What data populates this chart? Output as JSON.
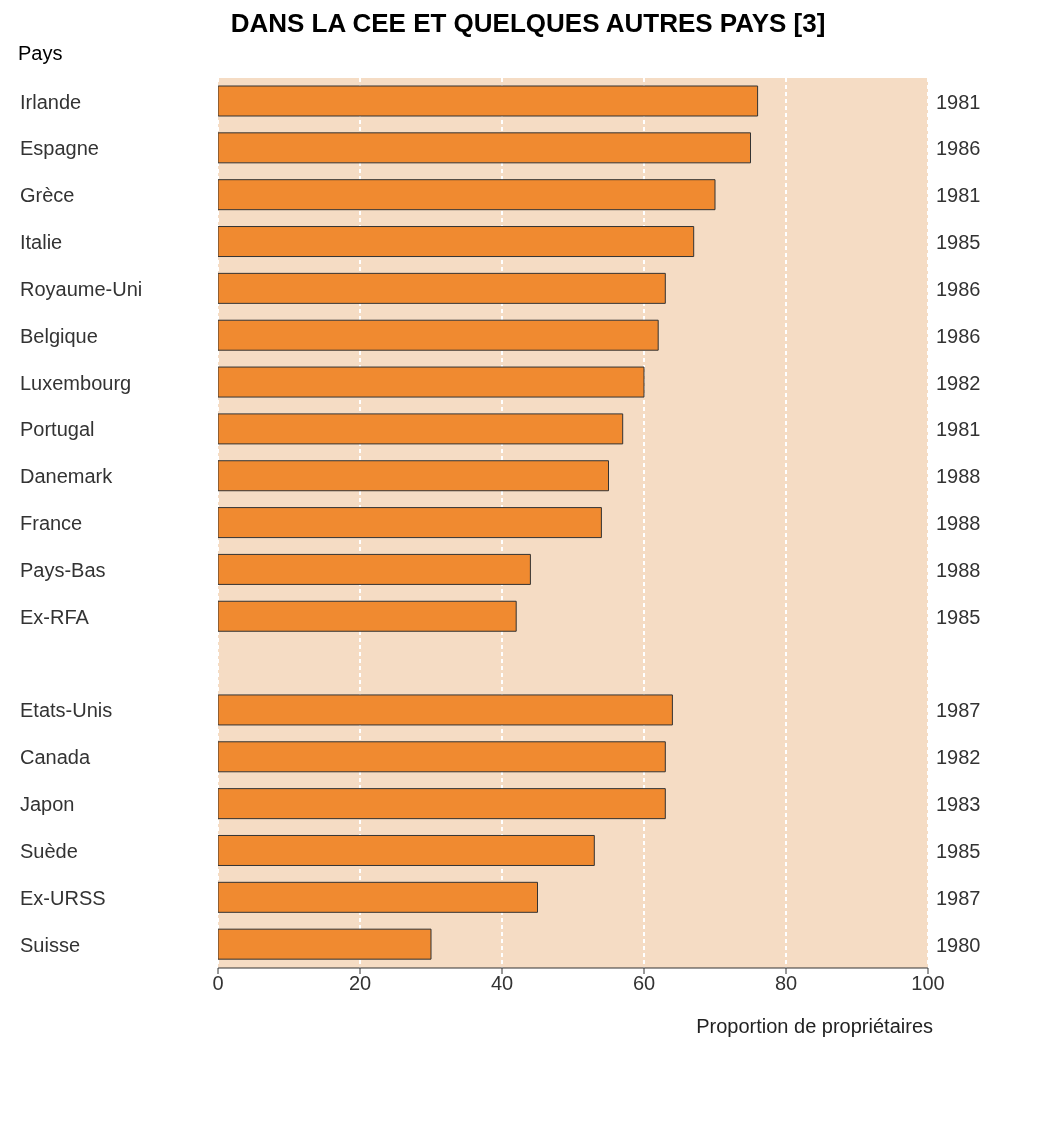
{
  "chart_data": {
    "type": "bar",
    "orientation": "horizontal",
    "title": "DANS LA CEE ET QUELQUES AUTRES PAYS [3]",
    "ylabel": "Pays",
    "xlabel": "Proportion de propriétaires",
    "categories": [
      "Irlande",
      "Espagne",
      "Grèce",
      "Italie",
      "Royaume-Uni",
      "Belgique",
      "Luxembourg",
      "Portugal",
      "Danemark",
      "France",
      "Pays-Bas",
      "Ex-RFA",
      null,
      "Etats-Unis",
      "Canada",
      "Japon",
      "Suède",
      "Ex-URSS",
      "Suisse"
    ],
    "values": [
      76,
      75,
      70,
      67,
      63,
      62,
      60,
      57,
      55,
      54,
      44,
      42,
      null,
      64,
      63,
      63,
      53,
      45,
      30
    ],
    "color": "#f08a30",
    "xlim": [
      0,
      100
    ],
    "xticks": [
      0,
      20,
      40,
      60,
      80,
      100
    ],
    "grid": "x",
    "legend": false,
    "annotations": [
      "1981",
      "1986",
      "1981",
      "1985",
      "1986",
      "1986",
      "1982",
      "1981",
      "1988",
      "1988",
      "1988",
      "1985",
      "1987",
      "1982",
      "1983",
      "1985",
      "1987",
      "1980"
    ]
  }
}
